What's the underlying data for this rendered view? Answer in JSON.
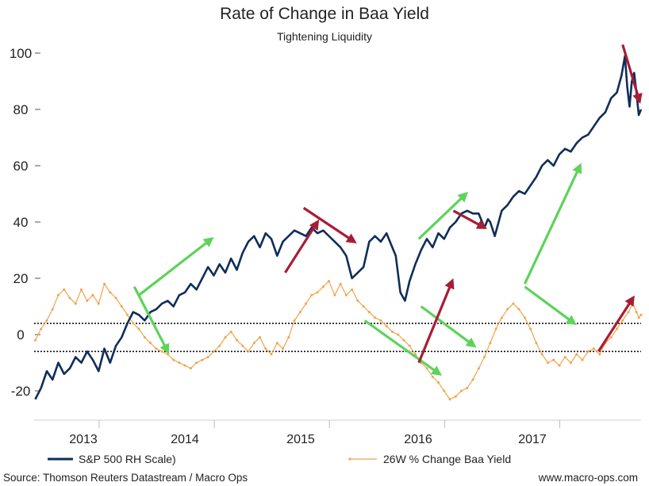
{
  "chart_data": {
    "type": "line",
    "title": "Rate of Change in Baa Yield",
    "subtitle": "Tightening Liquidity",
    "ylim": [
      -25,
      105
    ],
    "yticks": [
      -20,
      0,
      20,
      40,
      60,
      80,
      100
    ],
    "xlim": [
      2012.66,
      2017.93
    ],
    "x_categories": [
      "2013",
      "2014",
      "2015",
      "2016",
      "2017"
    ],
    "reference_lines": [
      4,
      -6
    ],
    "legend_position": "bottom",
    "grid": false,
    "series": [
      {
        "name": "S&P 500 RH Scale)",
        "color": "#0f2d5a",
        "points": [
          [
            2012.67,
            -23
          ],
          [
            2012.72,
            -19
          ],
          [
            2012.77,
            -13
          ],
          [
            2012.82,
            -16
          ],
          [
            2012.87,
            -10
          ],
          [
            2012.92,
            -14
          ],
          [
            2012.97,
            -12
          ],
          [
            2013.02,
            -8
          ],
          [
            2013.07,
            -10
          ],
          [
            2013.12,
            -6
          ],
          [
            2013.17,
            -9
          ],
          [
            2013.22,
            -13
          ],
          [
            2013.27,
            -5
          ],
          [
            2013.32,
            -10
          ],
          [
            2013.37,
            -4
          ],
          [
            2013.42,
            -1
          ],
          [
            2013.47,
            4
          ],
          [
            2013.52,
            8
          ],
          [
            2013.57,
            7
          ],
          [
            2013.62,
            5
          ],
          [
            2013.67,
            8
          ],
          [
            2013.72,
            9
          ],
          [
            2013.77,
            11
          ],
          [
            2013.82,
            12
          ],
          [
            2013.87,
            10
          ],
          [
            2013.92,
            14
          ],
          [
            2013.97,
            15
          ],
          [
            2014.02,
            18
          ],
          [
            2014.07,
            16
          ],
          [
            2014.12,
            20
          ],
          [
            2014.17,
            24
          ],
          [
            2014.22,
            21
          ],
          [
            2014.27,
            25
          ],
          [
            2014.32,
            22
          ],
          [
            2014.37,
            27
          ],
          [
            2014.42,
            23
          ],
          [
            2014.47,
            29
          ],
          [
            2014.52,
            33
          ],
          [
            2014.57,
            35
          ],
          [
            2014.62,
            31
          ],
          [
            2014.67,
            36
          ],
          [
            2014.72,
            34
          ],
          [
            2014.77,
            28
          ],
          [
            2014.82,
            33
          ],
          [
            2014.87,
            35
          ],
          [
            2014.92,
            37
          ],
          [
            2014.97,
            36
          ],
          [
            2015.02,
            35
          ],
          [
            2015.07,
            38
          ],
          [
            2015.12,
            36
          ],
          [
            2015.17,
            37
          ],
          [
            2015.22,
            35
          ],
          [
            2015.27,
            33
          ],
          [
            2015.32,
            31
          ],
          [
            2015.37,
            28
          ],
          [
            2015.42,
            20
          ],
          [
            2015.47,
            22
          ],
          [
            2015.52,
            24
          ],
          [
            2015.57,
            33
          ],
          [
            2015.62,
            35
          ],
          [
            2015.67,
            33
          ],
          [
            2015.72,
            36
          ],
          [
            2015.77,
            31
          ],
          [
            2015.8,
            28
          ],
          [
            2015.84,
            15
          ],
          [
            2015.88,
            12
          ],
          [
            2015.92,
            19
          ],
          [
            2015.97,
            25
          ],
          [
            2016.02,
            30
          ],
          [
            2016.07,
            34
          ],
          [
            2016.12,
            31
          ],
          [
            2016.17,
            36
          ],
          [
            2016.22,
            34
          ],
          [
            2016.27,
            38
          ],
          [
            2016.32,
            40
          ],
          [
            2016.37,
            43
          ],
          [
            2016.42,
            44
          ],
          [
            2016.47,
            43
          ],
          [
            2016.52,
            43
          ],
          [
            2016.57,
            38
          ],
          [
            2016.6,
            41
          ],
          [
            2016.62,
            40
          ],
          [
            2016.66,
            35
          ],
          [
            2016.72,
            44
          ],
          [
            2016.77,
            46
          ],
          [
            2016.82,
            49
          ],
          [
            2016.87,
            51
          ],
          [
            2016.92,
            50
          ],
          [
            2016.97,
            53
          ],
          [
            2017.02,
            56
          ],
          [
            2017.07,
            60
          ],
          [
            2017.12,
            62
          ],
          [
            2017.17,
            60
          ],
          [
            2017.22,
            64
          ],
          [
            2017.27,
            66
          ],
          [
            2017.32,
            65
          ],
          [
            2017.37,
            68
          ],
          [
            2017.42,
            70
          ],
          [
            2017.47,
            71
          ],
          [
            2017.52,
            74
          ],
          [
            2017.57,
            77
          ],
          [
            2017.62,
            79
          ],
          [
            2017.67,
            84
          ],
          [
            2017.72,
            86
          ],
          [
            2017.76,
            92
          ],
          [
            2017.79,
            99
          ],
          [
            2017.81,
            88
          ],
          [
            2017.83,
            81
          ],
          [
            2017.85,
            90
          ],
          [
            2017.87,
            93
          ],
          [
            2017.89,
            86
          ],
          [
            2017.91,
            78
          ],
          [
            2017.93,
            80
          ]
        ]
      },
      {
        "name": "26W % Change Baa Yield",
        "color": "#f0a54c",
        "points": [
          [
            2012.67,
            -2
          ],
          [
            2012.72,
            2
          ],
          [
            2012.77,
            5
          ],
          [
            2012.82,
            9
          ],
          [
            2012.87,
            14
          ],
          [
            2012.92,
            16
          ],
          [
            2012.97,
            13
          ],
          [
            2013.02,
            11
          ],
          [
            2013.07,
            16
          ],
          [
            2013.12,
            12
          ],
          [
            2013.17,
            14
          ],
          [
            2013.22,
            11
          ],
          [
            2013.27,
            18
          ],
          [
            2013.32,
            15
          ],
          [
            2013.37,
            13
          ],
          [
            2013.42,
            10
          ],
          [
            2013.47,
            7
          ],
          [
            2013.52,
            4
          ],
          [
            2013.57,
            2
          ],
          [
            2013.62,
            -1
          ],
          [
            2013.67,
            -3
          ],
          [
            2013.72,
            -5
          ],
          [
            2013.77,
            -6
          ],
          [
            2013.82,
            -7
          ],
          [
            2013.87,
            -9
          ],
          [
            2013.92,
            -10
          ],
          [
            2013.97,
            -11
          ],
          [
            2014.02,
            -12
          ],
          [
            2014.07,
            -10
          ],
          [
            2014.12,
            -9
          ],
          [
            2014.17,
            -8
          ],
          [
            2014.22,
            -6
          ],
          [
            2014.27,
            -4
          ],
          [
            2014.32,
            -1
          ],
          [
            2014.37,
            1
          ],
          [
            2014.42,
            -2
          ],
          [
            2014.47,
            -4
          ],
          [
            2014.52,
            -6
          ],
          [
            2014.57,
            -3
          ],
          [
            2014.62,
            -1
          ],
          [
            2014.67,
            -5
          ],
          [
            2014.72,
            -7
          ],
          [
            2014.77,
            -3
          ],
          [
            2014.82,
            -5
          ],
          [
            2014.87,
            -1
          ],
          [
            2014.92,
            5
          ],
          [
            2014.97,
            8
          ],
          [
            2015.02,
            11
          ],
          [
            2015.07,
            14
          ],
          [
            2015.12,
            15
          ],
          [
            2015.17,
            17
          ],
          [
            2015.22,
            19
          ],
          [
            2015.27,
            14
          ],
          [
            2015.32,
            18
          ],
          [
            2015.37,
            14
          ],
          [
            2015.42,
            16
          ],
          [
            2015.47,
            12
          ],
          [
            2015.52,
            10
          ],
          [
            2015.57,
            8
          ],
          [
            2015.62,
            6
          ],
          [
            2015.67,
            5
          ],
          [
            2015.72,
            3
          ],
          [
            2015.77,
            1
          ],
          [
            2015.82,
            0
          ],
          [
            2015.87,
            -2
          ],
          [
            2015.92,
            -4
          ],
          [
            2015.97,
            -7
          ],
          [
            2016.02,
            -10
          ],
          [
            2016.07,
            -12
          ],
          [
            2016.12,
            -15
          ],
          [
            2016.17,
            -17
          ],
          [
            2016.22,
            -20
          ],
          [
            2016.27,
            -23
          ],
          [
            2016.32,
            -22
          ],
          [
            2016.37,
            -20
          ],
          [
            2016.42,
            -19
          ],
          [
            2016.47,
            -16
          ],
          [
            2016.52,
            -12
          ],
          [
            2016.57,
            -8
          ],
          [
            2016.62,
            -3
          ],
          [
            2016.67,
            2
          ],
          [
            2016.72,
            6
          ],
          [
            2016.77,
            9
          ],
          [
            2016.82,
            11
          ],
          [
            2016.87,
            9
          ],
          [
            2016.92,
            6
          ],
          [
            2016.97,
            2
          ],
          [
            2017.02,
            -3
          ],
          [
            2017.07,
            -7
          ],
          [
            2017.12,
            -10
          ],
          [
            2017.17,
            -9
          ],
          [
            2017.22,
            -11
          ],
          [
            2017.27,
            -8
          ],
          [
            2017.32,
            -10
          ],
          [
            2017.37,
            -7
          ],
          [
            2017.42,
            -9
          ],
          [
            2017.47,
            -6
          ],
          [
            2017.52,
            -5
          ],
          [
            2017.57,
            -7
          ],
          [
            2017.62,
            -3
          ],
          [
            2017.67,
            -1
          ],
          [
            2017.72,
            2
          ],
          [
            2017.77,
            5
          ],
          [
            2017.82,
            8
          ],
          [
            2017.86,
            11
          ],
          [
            2017.89,
            8
          ],
          [
            2017.91,
            6
          ],
          [
            2017.93,
            7
          ]
        ]
      }
    ],
    "annotations": {
      "green_arrows": [
        [
          [
            2013.53,
            17
          ],
          [
            2013.82,
            -6
          ]
        ],
        [
          [
            2013.57,
            14
          ],
          [
            2014.2,
            34
          ]
        ],
        [
          [
            2015.53,
            5
          ],
          [
            2016.18,
            -14
          ]
        ],
        [
          [
            2016.0,
            34
          ],
          [
            2016.41,
            50
          ]
        ],
        [
          [
            2016.92,
            18
          ],
          [
            2017.4,
            60
          ]
        ],
        [
          [
            2016.92,
            17
          ],
          [
            2017.35,
            4
          ]
        ],
        [
          [
            2016.02,
            10
          ],
          [
            2016.48,
            -4
          ]
        ]
      ],
      "red_arrows": [
        [
          [
            2015.0,
            45
          ],
          [
            2015.44,
            33
          ]
        ],
        [
          [
            2014.84,
            22
          ],
          [
            2015.12,
            40
          ]
        ],
        [
          [
            2016.3,
            44
          ],
          [
            2016.57,
            38
          ]
        ],
        [
          [
            2016.0,
            -10
          ],
          [
            2016.29,
            19
          ]
        ],
        [
          [
            2017.56,
            -6
          ],
          [
            2017.86,
            13
          ]
        ],
        [
          [
            2017.77,
            103
          ],
          [
            2018.0,
            83
          ]
        ]
      ]
    },
    "colors": {
      "sp500": "#0f2d5a",
      "baa": "#f0a54c",
      "green_arrow": "#5dd35a",
      "red_arrow": "#a81d36"
    }
  },
  "legend": {
    "sp500_label": "S&P 500 RH Scale)",
    "baa_label": "26W % Change Baa Yield"
  },
  "footer": {
    "source": "Source: Thomson Reuters Datastream / Macro Ops",
    "website": "www.macro-ops.com"
  }
}
